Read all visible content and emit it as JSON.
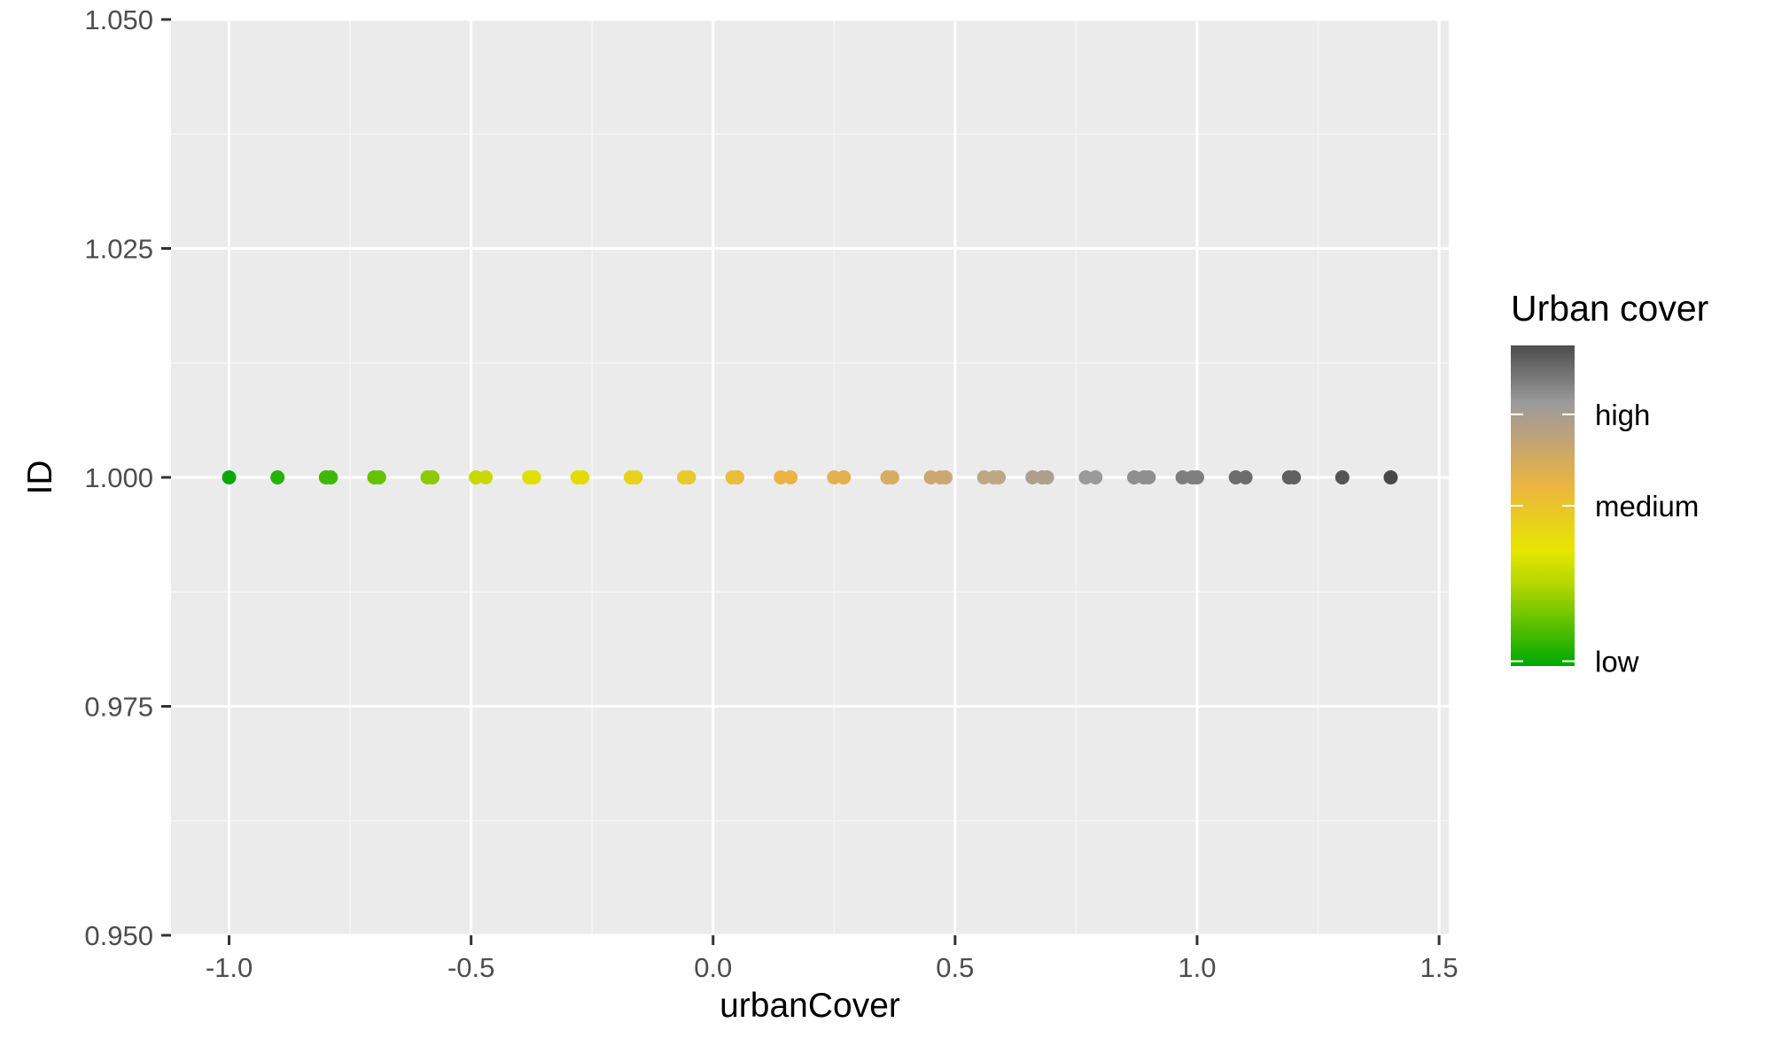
{
  "chart_data": {
    "type": "scatter",
    "xlabel": "urbanCover",
    "ylabel": "ID",
    "xlim": [
      -1.12,
      1.52
    ],
    "ylim": [
      0.95,
      1.05
    ],
    "x_ticks": [
      -1.0,
      -0.5,
      0.0,
      0.5,
      1.0,
      1.5
    ],
    "x_tick_labels": [
      "-1.0",
      "-0.5",
      "0.0",
      "0.5",
      "1.0",
      "1.5"
    ],
    "y_ticks": [
      0.95,
      0.975,
      1.0,
      1.025,
      1.05
    ],
    "y_tick_labels": [
      "0.950",
      "0.975",
      "1.000",
      "1.025",
      "1.050"
    ],
    "grid": true,
    "points": [
      {
        "x": -1.0,
        "y": 1.0,
        "color": "#0aa80a"
      },
      {
        "x": -0.9,
        "y": 1.0,
        "color": "#26b208"
      },
      {
        "x": -0.8,
        "y": 1.0,
        "color": "#3eb806"
      },
      {
        "x": -0.79,
        "y": 1.0,
        "color": "#3eb806"
      },
      {
        "x": -0.7,
        "y": 1.0,
        "color": "#66c004"
      },
      {
        "x": -0.69,
        "y": 1.0,
        "color": "#66c004"
      },
      {
        "x": -0.59,
        "y": 1.0,
        "color": "#8ec800"
      },
      {
        "x": -0.58,
        "y": 1.0,
        "color": "#8ec800"
      },
      {
        "x": -0.49,
        "y": 1.0,
        "color": "#c8d800"
      },
      {
        "x": -0.47,
        "y": 1.0,
        "color": "#c8d800"
      },
      {
        "x": -0.38,
        "y": 1.0,
        "color": "#e0e000"
      },
      {
        "x": -0.37,
        "y": 1.0,
        "color": "#e0e000"
      },
      {
        "x": -0.28,
        "y": 1.0,
        "color": "#e4dc00"
      },
      {
        "x": -0.27,
        "y": 1.0,
        "color": "#e4dc00"
      },
      {
        "x": -0.17,
        "y": 1.0,
        "color": "#e6d21c"
      },
      {
        "x": -0.16,
        "y": 1.0,
        "color": "#e6d21c"
      },
      {
        "x": -0.06,
        "y": 1.0,
        "color": "#e8c82a"
      },
      {
        "x": -0.05,
        "y": 1.0,
        "color": "#e8c82a"
      },
      {
        "x": 0.04,
        "y": 1.0,
        "color": "#eabd3a"
      },
      {
        "x": 0.05,
        "y": 1.0,
        "color": "#eabd3a"
      },
      {
        "x": 0.14,
        "y": 1.0,
        "color": "#eab444"
      },
      {
        "x": 0.16,
        "y": 1.0,
        "color": "#eab444"
      },
      {
        "x": 0.25,
        "y": 1.0,
        "color": "#e2b04e"
      },
      {
        "x": 0.27,
        "y": 1.0,
        "color": "#e2b04e"
      },
      {
        "x": 0.36,
        "y": 1.0,
        "color": "#d6ac62"
      },
      {
        "x": 0.37,
        "y": 1.0,
        "color": "#d6ac62"
      },
      {
        "x": 0.45,
        "y": 1.0,
        "color": "#c9a873"
      },
      {
        "x": 0.47,
        "y": 1.0,
        "color": "#c9a873"
      },
      {
        "x": 0.48,
        "y": 1.0,
        "color": "#c9a873"
      },
      {
        "x": 0.56,
        "y": 1.0,
        "color": "#bda784"
      },
      {
        "x": 0.58,
        "y": 1.0,
        "color": "#bda784"
      },
      {
        "x": 0.59,
        "y": 1.0,
        "color": "#bda784"
      },
      {
        "x": 0.66,
        "y": 1.0,
        "color": "#ad9f8e"
      },
      {
        "x": 0.68,
        "y": 1.0,
        "color": "#ad9f8e"
      },
      {
        "x": 0.69,
        "y": 1.0,
        "color": "#ad9f8e"
      },
      {
        "x": 0.77,
        "y": 1.0,
        "color": "#9a9a9a"
      },
      {
        "x": 0.79,
        "y": 1.0,
        "color": "#9a9a9a"
      },
      {
        "x": 0.87,
        "y": 1.0,
        "color": "#8f8f8f"
      },
      {
        "x": 0.89,
        "y": 1.0,
        "color": "#8f8f8f"
      },
      {
        "x": 0.9,
        "y": 1.0,
        "color": "#8f8f8f"
      },
      {
        "x": 0.97,
        "y": 1.0,
        "color": "#7e7e7e"
      },
      {
        "x": 0.99,
        "y": 1.0,
        "color": "#7e7e7e"
      },
      {
        "x": 1.0,
        "y": 1.0,
        "color": "#7e7e7e"
      },
      {
        "x": 1.08,
        "y": 1.0,
        "color": "#6c6c6c"
      },
      {
        "x": 1.1,
        "y": 1.0,
        "color": "#6c6c6c"
      },
      {
        "x": 1.19,
        "y": 1.0,
        "color": "#606060"
      },
      {
        "x": 1.2,
        "y": 1.0,
        "color": "#606060"
      },
      {
        "x": 1.3,
        "y": 1.0,
        "color": "#545454"
      },
      {
        "x": 1.4,
        "y": 1.0,
        "color": "#484848"
      }
    ],
    "legend": {
      "title": "Urban cover",
      "placement": "right",
      "labels": [
        "high",
        "medium",
        "low"
      ],
      "label_levels": [
        0.785,
        0.5,
        0.015
      ],
      "gradient": [
        {
          "level": 0.0,
          "color": "#00a800"
        },
        {
          "level": 0.25,
          "color": "#b0d600"
        },
        {
          "level": 0.36,
          "color": "#e6e600"
        },
        {
          "level": 0.56,
          "color": "#ebb53f"
        },
        {
          "level": 0.72,
          "color": "#bda27c"
        },
        {
          "level": 0.82,
          "color": "#9b9b9b"
        },
        {
          "level": 1.0,
          "color": "#4d4d4d"
        }
      ]
    },
    "colors": {
      "panel_background": "#ebebeb",
      "grid_major": "#ffffff",
      "grid_minor": "#f5f5f5",
      "tick_mark": "#333333"
    }
  }
}
